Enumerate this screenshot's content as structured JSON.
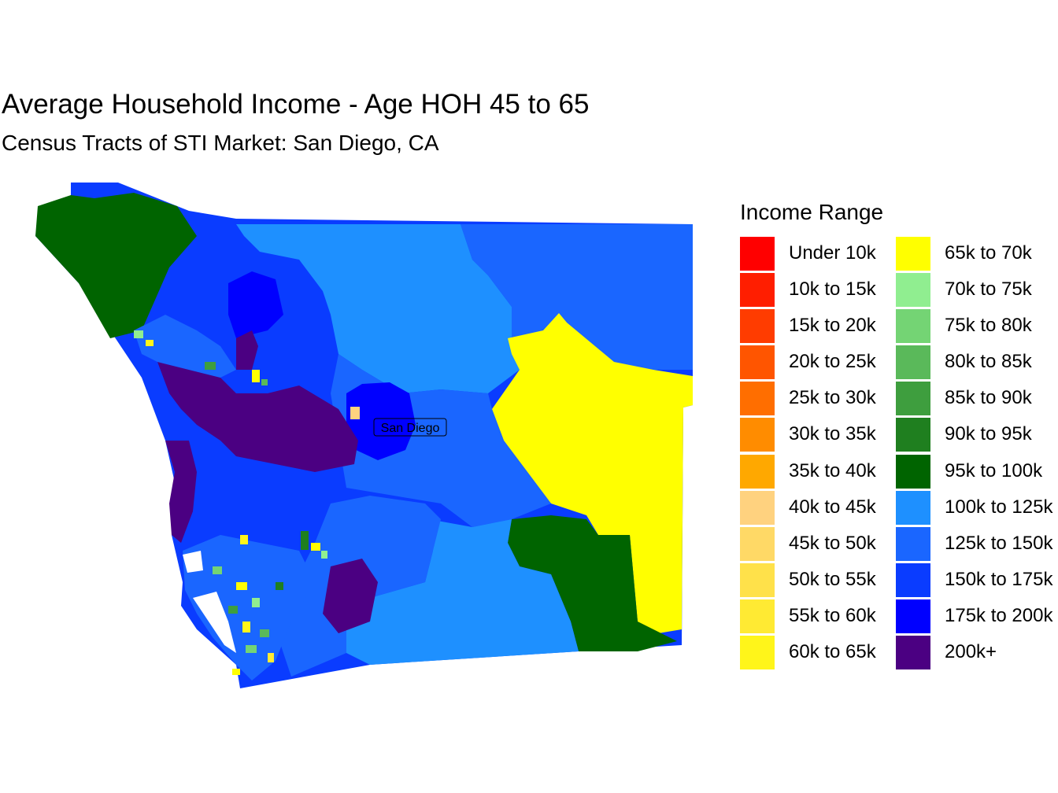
{
  "title": "Average Household Income - Age HOH 45 to 65",
  "subtitle": "Census Tracts of STI Market: San Diego, CA",
  "map": {
    "city_label": "San Diego"
  },
  "legend": {
    "title": "Income Range",
    "items": [
      {
        "label": "Under 10k",
        "color": "#FF0000"
      },
      {
        "label": "10k to 15k",
        "color": "#FF1E00"
      },
      {
        "label": "15k to 20k",
        "color": "#FF3C00"
      },
      {
        "label": "20k to 25k",
        "color": "#FF5500"
      },
      {
        "label": "25k to 30k",
        "color": "#FF6E00"
      },
      {
        "label": "30k to 35k",
        "color": "#FF8C00"
      },
      {
        "label": "35k to 40k",
        "color": "#FFA800"
      },
      {
        "label": "40k to 45k",
        "color": "#FFD27F"
      },
      {
        "label": "45k to 50k",
        "color": "#FFD966"
      },
      {
        "label": "50k to 55k",
        "color": "#FFE14A"
      },
      {
        "label": "55k to 60k",
        "color": "#FFEA33"
      },
      {
        "label": "60k to 65k",
        "color": "#FFF51A"
      },
      {
        "label": "65k to 70k",
        "color": "#FFFF00"
      },
      {
        "label": "70k to 75k",
        "color": "#90EE90"
      },
      {
        "label": "75k to 80k",
        "color": "#74D474"
      },
      {
        "label": "80k to 85k",
        "color": "#5AB95A"
      },
      {
        "label": "85k to 90k",
        "color": "#3E9E3E"
      },
      {
        "label": "90k to 95k",
        "color": "#1F7F1F"
      },
      {
        "label": "95k to 100k",
        "color": "#006400"
      },
      {
        "label": "100k to 125k",
        "color": "#1E90FF"
      },
      {
        "label": "125k to 150k",
        "color": "#1A66FF"
      },
      {
        "label": "150k to 175k",
        "color": "#0A3CFF"
      },
      {
        "label": "175k to 200k",
        "color": "#0000FF"
      },
      {
        "label": "200k+",
        "color": "#4B0082"
      }
    ]
  }
}
